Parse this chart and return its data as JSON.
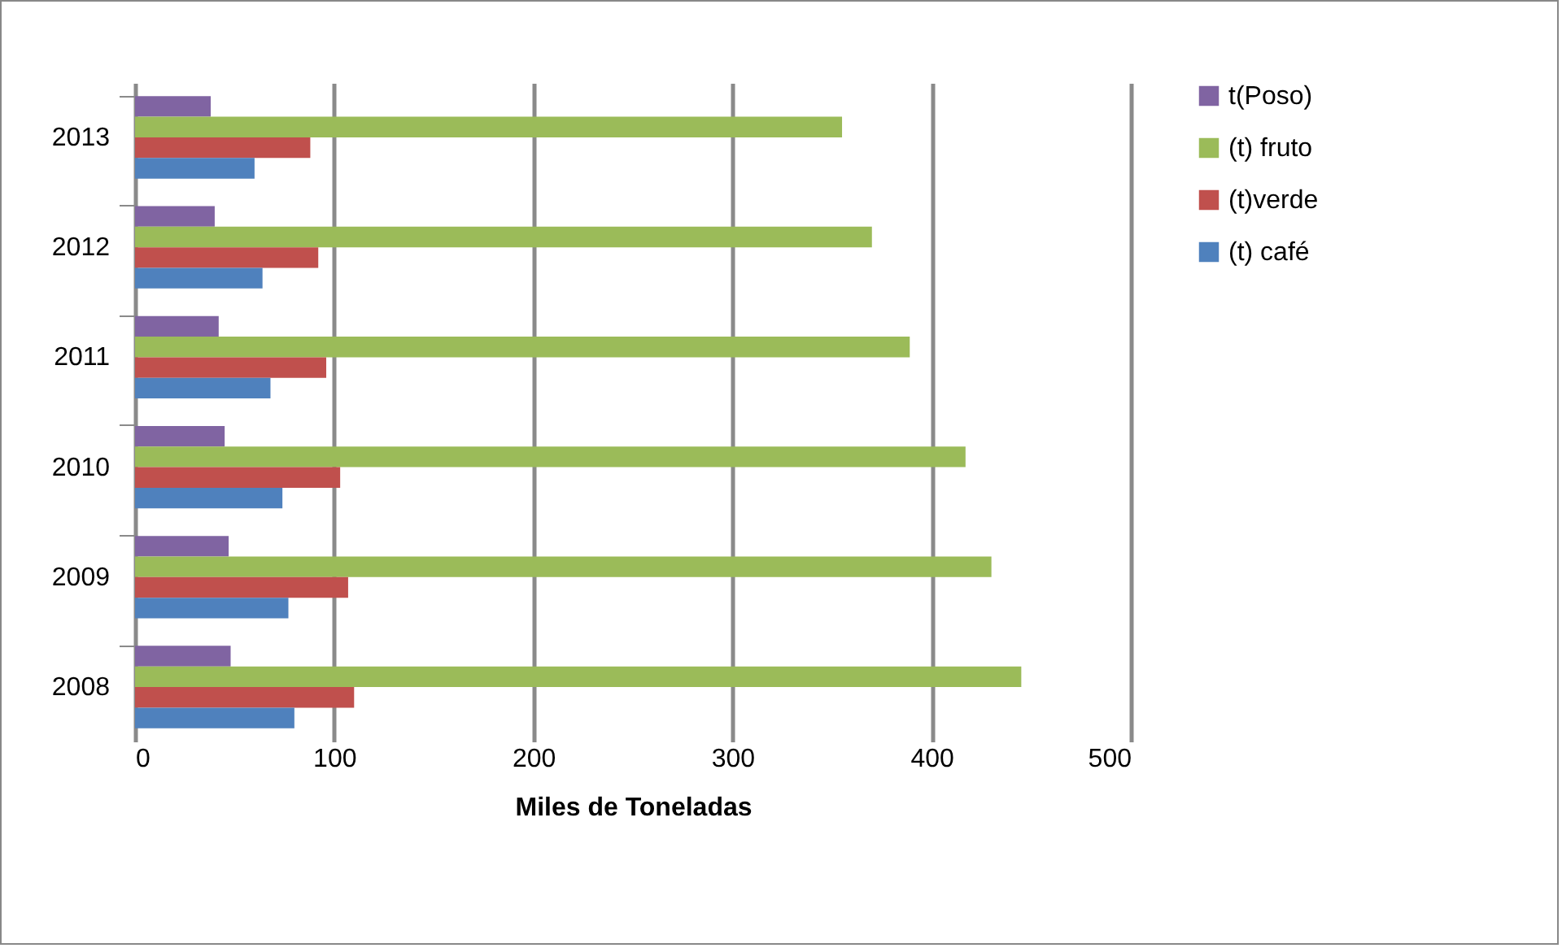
{
  "chart_data": {
    "type": "bar",
    "orientation": "horizontal",
    "xlabel": "Miles de Toneladas",
    "categories": [
      "2013",
      "2012",
      "2011",
      "2010",
      "2009",
      "2008"
    ],
    "series": [
      {
        "name": "t(Poso)",
        "color": "#8064a2",
        "values": [
          38,
          40,
          42,
          45,
          47,
          48
        ]
      },
      {
        "name": "(t) fruto",
        "color": "#9bbb59",
        "values": [
          355,
          370,
          389,
          417,
          430,
          445
        ]
      },
      {
        "name": "(t)verde",
        "color": "#c0504d",
        "values": [
          88,
          92,
          96,
          103,
          107,
          110
        ]
      },
      {
        "name": "(t) café",
        "color": "#4f81bd",
        "values": [
          60,
          64,
          68,
          74,
          77,
          80
        ]
      }
    ],
    "xlim": [
      0,
      500
    ],
    "xticks": [
      0,
      100,
      200,
      300,
      400,
      500
    ],
    "grid": "x",
    "legend": "right"
  }
}
